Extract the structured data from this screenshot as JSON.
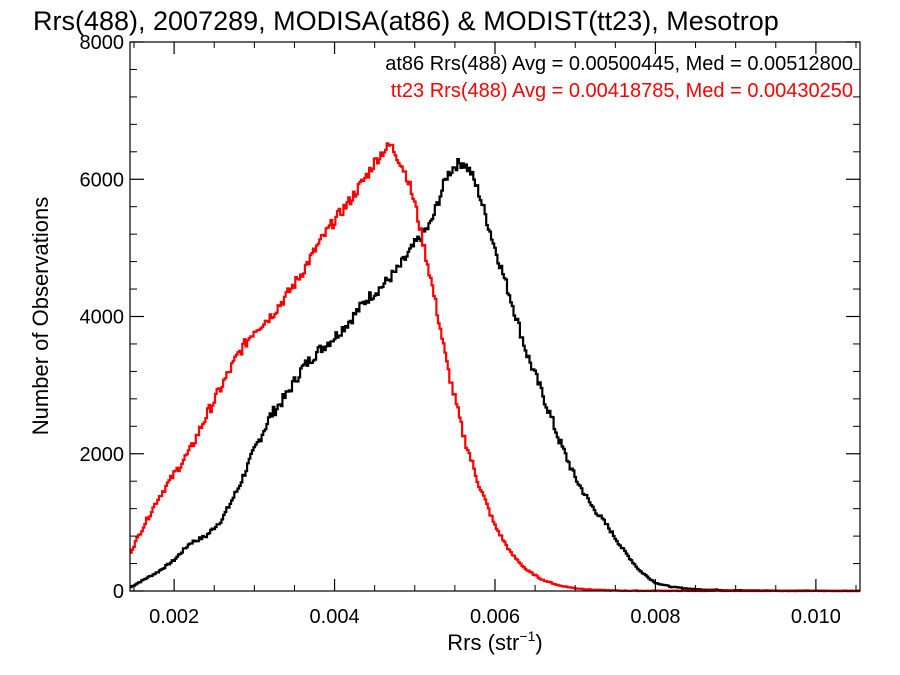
{
  "chart_data": {
    "type": "line",
    "title": "Rrs(488), 2007289, MODISA(at86) & MODIST(tt23), Mesotrop",
    "xlabel_main": "Rrs (str",
    "xlabel_sup": "−1",
    "xlabel_close": ")",
    "ylabel": "Number of Observations",
    "xlim": [
      0.00145,
      0.01055
    ],
    "ylim": [
      0,
      8000
    ],
    "xticks": [
      0.002,
      0.004,
      0.006,
      0.008,
      0.01
    ],
    "xtick_labels": [
      "0.002",
      "0.004",
      "0.006",
      "0.008",
      "0.010"
    ],
    "yticks": [
      0,
      2000,
      4000,
      6000,
      8000
    ],
    "ytick_labels": [
      "0",
      "2000",
      "4000",
      "6000",
      "8000"
    ],
    "grid": false,
    "legend_position": "top-right",
    "series": [
      {
        "name": "at86 Rrs(488) Avg = 0.00500445, Med = 0.00512800",
        "color": "#000000",
        "x": [
          0.00145,
          0.0016,
          0.0018,
          0.002,
          0.0022,
          0.0024,
          0.0026,
          0.0028,
          0.003,
          0.0032,
          0.0034,
          0.0036,
          0.0038,
          0.004,
          0.0042,
          0.0044,
          0.0046,
          0.0048,
          0.005,
          0.0052,
          0.0053,
          0.0054,
          0.0055,
          0.0056,
          0.0057,
          0.0058,
          0.006,
          0.0062,
          0.0064,
          0.0066,
          0.0068,
          0.007,
          0.0072,
          0.0074,
          0.0076,
          0.0078,
          0.008,
          0.0082,
          0.0085,
          0.009,
          0.0095,
          0.01,
          0.0105
        ],
        "y": [
          50,
          150,
          280,
          450,
          700,
          800,
          1050,
          1500,
          2050,
          2550,
          2850,
          3250,
          3500,
          3700,
          3950,
          4250,
          4450,
          4700,
          5050,
          5350,
          5700,
          6050,
          6200,
          6250,
          6100,
          5800,
          5000,
          4250,
          3450,
          2850,
          2200,
          1650,
          1250,
          950,
          600,
          300,
          120,
          60,
          25,
          10,
          5,
          3,
          1
        ]
      },
      {
        "name": "tt23 Rrs(488) Avg = 0.00418785, Med = 0.00430250",
        "color": "#ff0000",
        "x": [
          0.00145,
          0.0016,
          0.0018,
          0.002,
          0.0022,
          0.0024,
          0.0026,
          0.0028,
          0.003,
          0.0032,
          0.0034,
          0.0036,
          0.0038,
          0.004,
          0.0042,
          0.0044,
          0.0045,
          0.0046,
          0.0047,
          0.0048,
          0.0049,
          0.005,
          0.0051,
          0.0052,
          0.0053,
          0.0054,
          0.0055,
          0.0056,
          0.0058,
          0.006,
          0.0062,
          0.0064,
          0.0066,
          0.0068,
          0.007,
          0.0072,
          0.0074,
          0.0076,
          0.008,
          0.0085,
          0.009,
          0.0095,
          0.01,
          0.0105
        ],
        "y": [
          550,
          900,
          1350,
          1700,
          2050,
          2550,
          3000,
          3450,
          3800,
          4000,
          4300,
          4650,
          5050,
          5400,
          5700,
          6050,
          6250,
          6400,
          6500,
          6300,
          6050,
          5650,
          5100,
          4550,
          3950,
          3300,
          2800,
          2300,
          1550,
          950,
          550,
          300,
          160,
          80,
          40,
          20,
          10,
          5,
          3,
          2,
          1,
          1,
          0,
          0
        ]
      }
    ]
  }
}
